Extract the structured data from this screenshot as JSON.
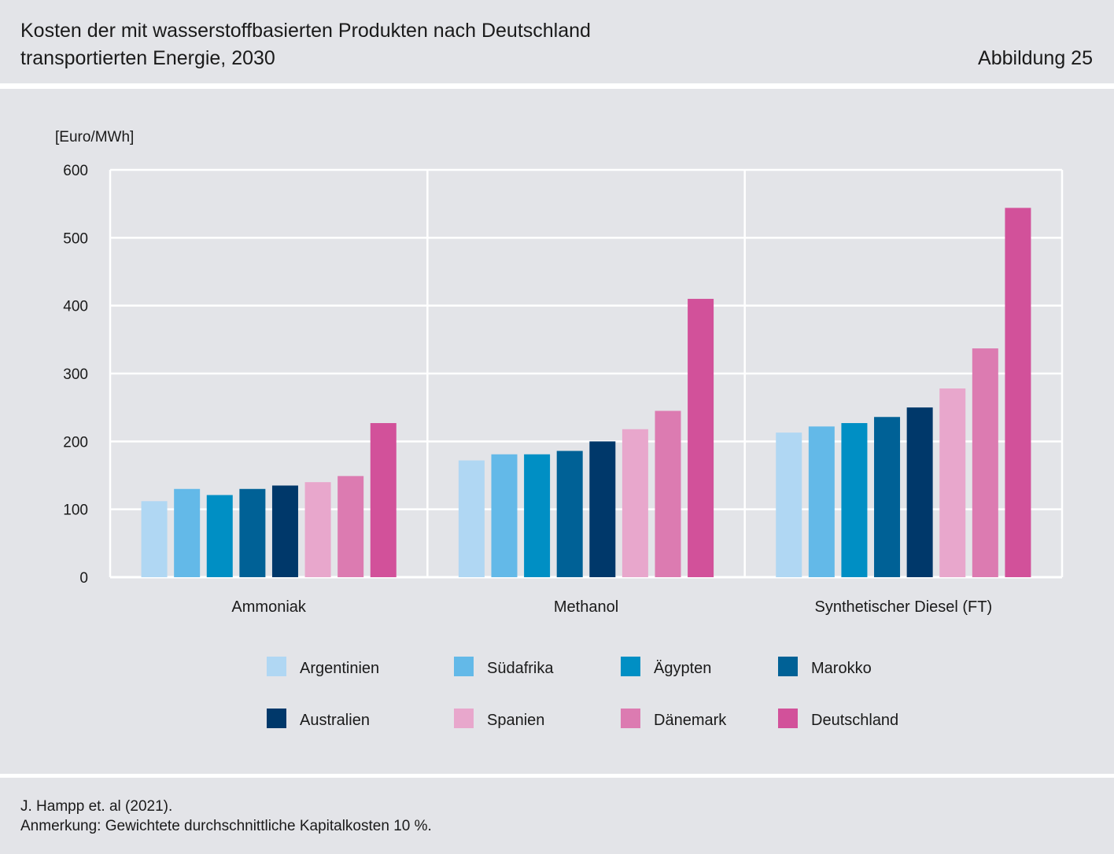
{
  "header": {
    "title_line1": "Kosten der mit wasserstoffbasierten Produkten nach Deutschland",
    "title_line2": "transportierten Energie, 2030",
    "figure_label": "Abbildung 25"
  },
  "footer": {
    "source": "J. Hampp et. al (2021).",
    "note": "Anmerkung: Gewichtete durchschnittliche Kapitalkosten 10 %."
  },
  "chart_data": {
    "type": "bar",
    "title": "Kosten der mit wasserstoffbasierten Produkten nach Deutschland transportierten Energie, 2030",
    "ylabel": "[Euro/MWh]",
    "xlabel": "",
    "ylim": [
      0,
      600
    ],
    "yticks": [
      0,
      100,
      200,
      300,
      400,
      500,
      600
    ],
    "grid": true,
    "legend_position": "bottom",
    "categories": [
      "Ammoniak",
      "Methanol",
      "Synthetischer Diesel (FT)"
    ],
    "series": [
      {
        "name": "Argentinien",
        "color": "#b0d7f3",
        "values": [
          112,
          172,
          213
        ]
      },
      {
        "name": "Südafrika",
        "color": "#63b9e8",
        "values": [
          130,
          181,
          222
        ]
      },
      {
        "name": "Ägypten",
        "color": "#008fc4",
        "values": [
          121,
          181,
          227
        ]
      },
      {
        "name": "Marokko",
        "color": "#006196",
        "values": [
          130,
          186,
          236
        ]
      },
      {
        "name": "Australien",
        "color": "#00386a",
        "values": [
          135,
          200,
          250
        ]
      },
      {
        "name": "Spanien",
        "color": "#e8a7cc",
        "values": [
          140,
          218,
          278
        ]
      },
      {
        "name": "Dänemark",
        "color": "#dc7bb1",
        "values": [
          149,
          245,
          337
        ]
      },
      {
        "name": "Deutschland",
        "color": "#d2519a",
        "values": [
          227,
          410,
          544
        ]
      }
    ]
  }
}
